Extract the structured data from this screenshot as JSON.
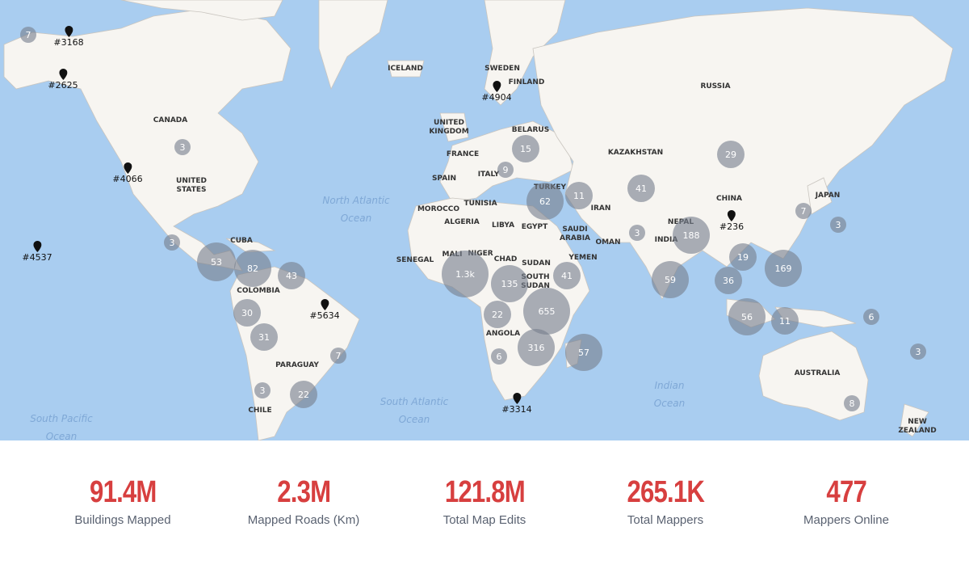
{
  "map": {
    "countries": [
      "ICELAND",
      "SWEDEN",
      "FINLAND",
      "RUSSIA",
      "UNITED\nKINGDOM",
      "BELARUS",
      "FRANCE",
      "KAZAKHSTAN",
      "SPAIN",
      "ITALY",
      "TURKEY",
      "CHINA",
      "JAPAN",
      "MOROCCO",
      "TUNISIA",
      "ALGERIA",
      "LIBYA",
      "EGYPT",
      "SAUDI\nARABIA",
      "IRAN",
      "NEPAL",
      "INDIA",
      "OMAN",
      "YEMEN",
      "SENEGAL",
      "MALI",
      "NIGER",
      "CHAD",
      "SUDAN",
      "SOUTH\nSUDAN",
      "ANGOLA",
      "CANADA",
      "UNITED\nSTATES",
      "CUBA",
      "COLOMBIA",
      "PARAGUAY",
      "CHILE",
      "AUSTRALIA",
      "NEW\nZEALAND"
    ],
    "oceans": [
      "North Atlantic\nOcean",
      "South Atlantic\nOcean",
      "Indian\nOcean",
      "South Pacific\nOcean"
    ],
    "clusters": [
      "7",
      "3",
      "3",
      "53",
      "82",
      "43",
      "30",
      "31",
      "7",
      "3",
      "22",
      "15",
      "9",
      "62",
      "11",
      "41",
      "29",
      "3",
      "188",
      "41",
      "135",
      "1.3k",
      "22",
      "655",
      "316",
      "6",
      "57",
      "59",
      "19",
      "36",
      "169",
      "56",
      "11",
      "7",
      "3",
      "6",
      "3",
      "8"
    ],
    "pins": [
      "#3168",
      "#2625",
      "#4066",
      "#4537",
      "#5634",
      "#4904",
      "#236",
      "#3314"
    ],
    "cluster_color": "#78808e",
    "land_color": "#f7f5f1",
    "water_color": "#a9cdf0",
    "pin_icon": "map-marker-icon"
  },
  "stats": [
    {
      "value": "91.4M",
      "label": "Buildings Mapped"
    },
    {
      "value": "2.3M",
      "label": "Mapped Roads (Km)"
    },
    {
      "value": "121.8M",
      "label": "Total Map Edits"
    },
    {
      "value": "265.1K",
      "label": "Total Mappers"
    },
    {
      "value": "477",
      "label": "Mappers Online"
    }
  ],
  "accent_color": "#d73f3f"
}
